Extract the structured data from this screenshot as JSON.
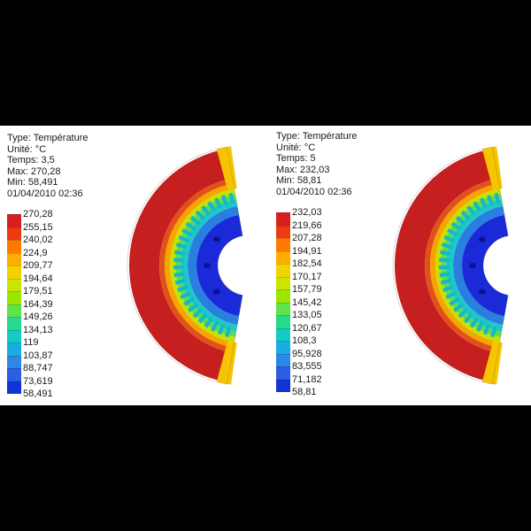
{
  "panels": [
    {
      "type_line": "Type: Température",
      "unit_line": "Unité: °C",
      "time_line": "Temps: 3,5",
      "max_line": "Max: 270,28",
      "min_line": "Min: 58,491",
      "date_line": "01/04/2010 02:36",
      "legend": [
        "270,28",
        "255,15",
        "240,02",
        "224,9",
        "209,77",
        "194,64",
        "179,51",
        "164,39",
        "149,26",
        "134,13",
        "119",
        "103,87",
        "88,747",
        "73,619",
        "58,491"
      ]
    },
    {
      "type_line": "Type: Température",
      "unit_line": "Unité: °C",
      "time_line": "Temps: 5",
      "max_line": "Max: 232,03",
      "min_line": "Min: 58,81",
      "date_line": "01/04/2010 02:36",
      "legend": [
        "232,03",
        "219,66",
        "207,28",
        "194,91",
        "182,54",
        "170,17",
        "157,79",
        "145,42",
        "133,05",
        "120,67",
        "108,3",
        "95,928",
        "83,555",
        "71,182",
        "58,81"
      ]
    }
  ],
  "colors": {
    "scale": [
      "#d71f1f",
      "#ee3a13",
      "#ff7a00",
      "#ffae00",
      "#f3d200",
      "#cde400",
      "#9be600",
      "#5fe34a",
      "#27d98b",
      "#13cdc2",
      "#1aaee0",
      "#2b88e6",
      "#2a5fe3",
      "#1234d6"
    ],
    "hot": "#c41e1e",
    "cold": "#1a2ad8"
  }
}
